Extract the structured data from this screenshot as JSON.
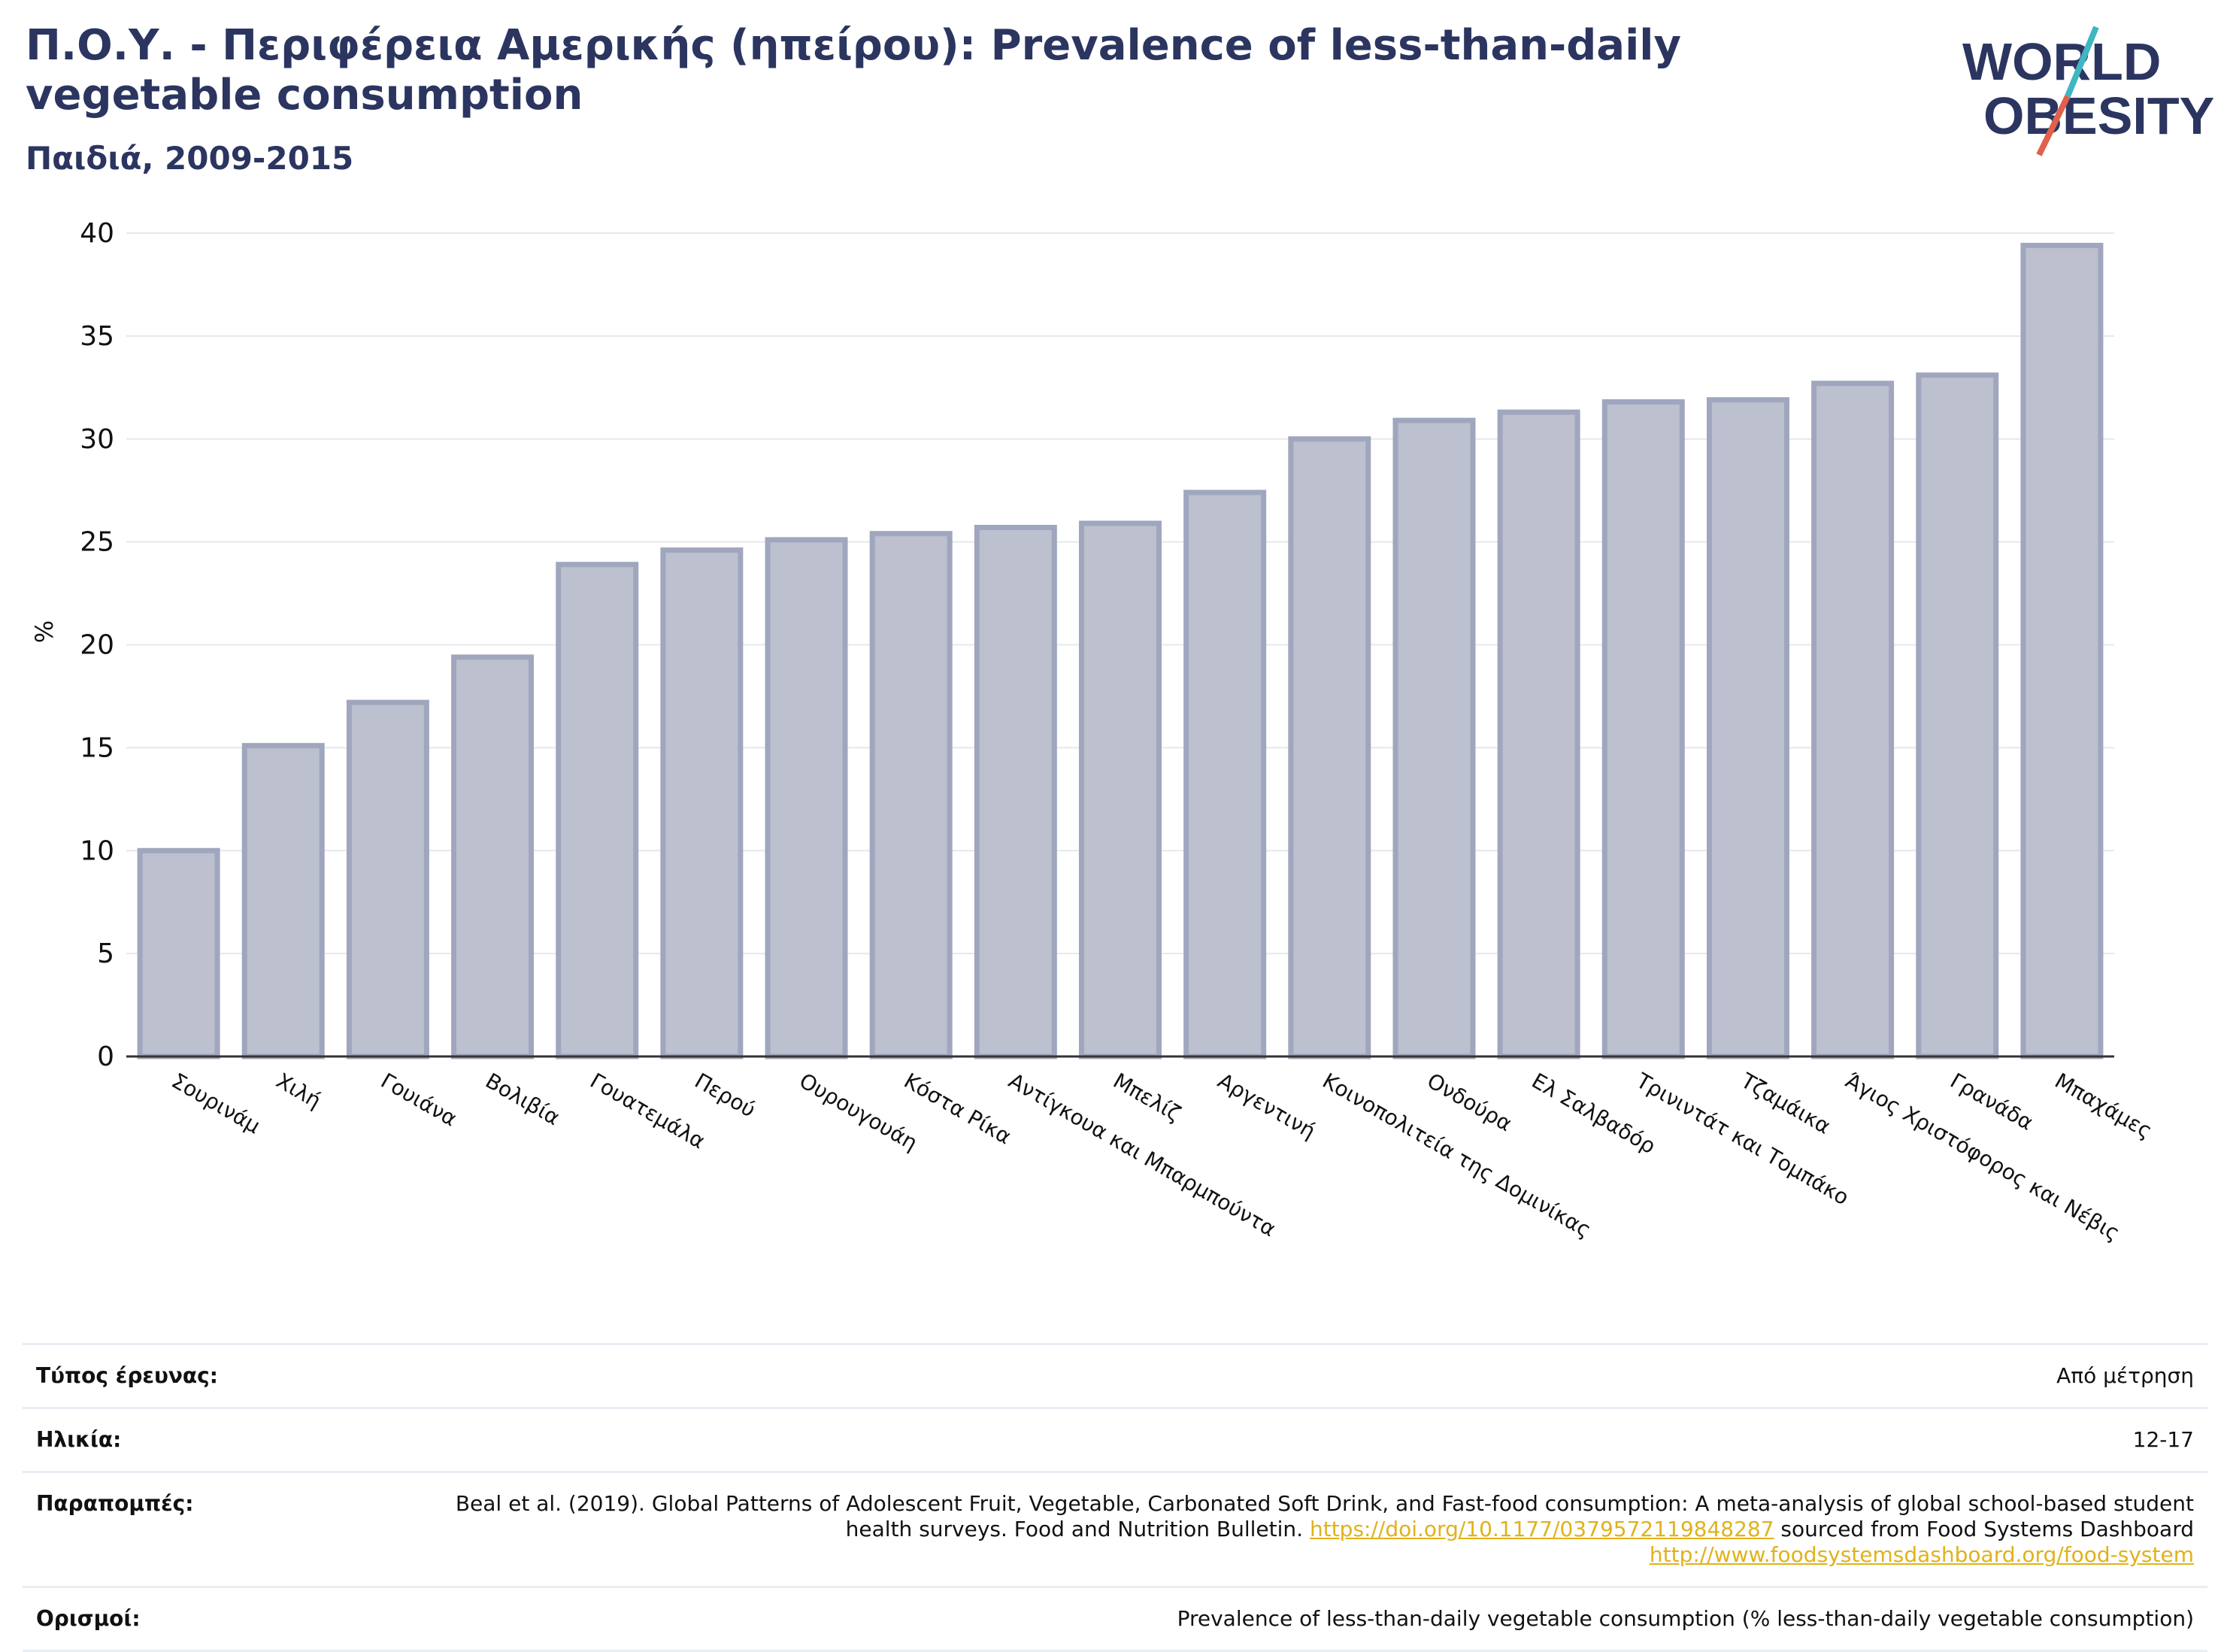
{
  "header": {
    "title": "Π.Ο.Υ. - Περιφέρεια Αμερικής (ηπείρου): Prevalence of less-than-daily vegetable consumption",
    "subtitle": "Παιδιά, 2009-2015",
    "logo_line1": "WORLD",
    "logo_line2": "OBESITY"
  },
  "colors": {
    "bar_fill": "#bcc0cf",
    "bar_stroke": "#a0a6bd",
    "title": "#2b3560",
    "logo_accent_teal": "#3fb6c2",
    "logo_accent_red": "#e0604b",
    "link": "#e0b21b"
  },
  "chart_data": {
    "type": "bar",
    "title": "",
    "xlabel": "",
    "ylabel": "%",
    "ylim": [
      0,
      40
    ],
    "yticks": [
      0,
      5,
      10,
      15,
      20,
      25,
      30,
      35,
      40
    ],
    "grid": true,
    "legend": "none",
    "categories": [
      "Σουρινάμ",
      "Χιλή",
      "Γουιάνα",
      "Βολιβία",
      "Γουατεμάλα",
      "Περού",
      "Ουρουγουάη",
      "Κόστα Ρίκα",
      "Αντίγκουα και Μπαρμπούντα",
      "Μπελίζ",
      "Αργεντινή",
      "Κοινοπολιτεία της Δομινίκας",
      "Ονδούρα",
      "Ελ Σαλβαδόρ",
      "Τρινιντάτ και Τομπάκο",
      "Τζαμάικα",
      "Άγιος Χριστόφορος και Νέβις",
      "Γρανάδα",
      "Μπαχάμες"
    ],
    "values": [
      10.0,
      15.1,
      17.2,
      19.4,
      23.9,
      24.6,
      25.1,
      25.4,
      25.7,
      25.9,
      27.4,
      30.0,
      30.9,
      31.3,
      31.8,
      31.9,
      32.7,
      33.1,
      39.4
    ]
  },
  "meta": [
    {
      "key": "Τύπος έρευνας:",
      "value": "Από μέτρηση"
    },
    {
      "key": "Ηλικία:",
      "value": "12-17"
    },
    {
      "key": "Παραπομπές:",
      "value_text": "Beal et al. (2019). Global Patterns of Adolescent Fruit, Vegetable, Carbonated Soft Drink, and Fast-food consumption: A meta-analysis of global school-based student health surveys. Food and Nutrition Bulletin. ",
      "link1": "https://doi.org/10.1177/0379572119848287",
      "mid_text": " sourced from Food Systems Dashboard ",
      "link2": "http://www.foodsystemsdashboard.org/food-system"
    },
    {
      "key": "Ορισμοί:",
      "value": "Prevalence of less-than-daily vegetable consumption (% less-than-daily vegetable consumption)"
    }
  ]
}
